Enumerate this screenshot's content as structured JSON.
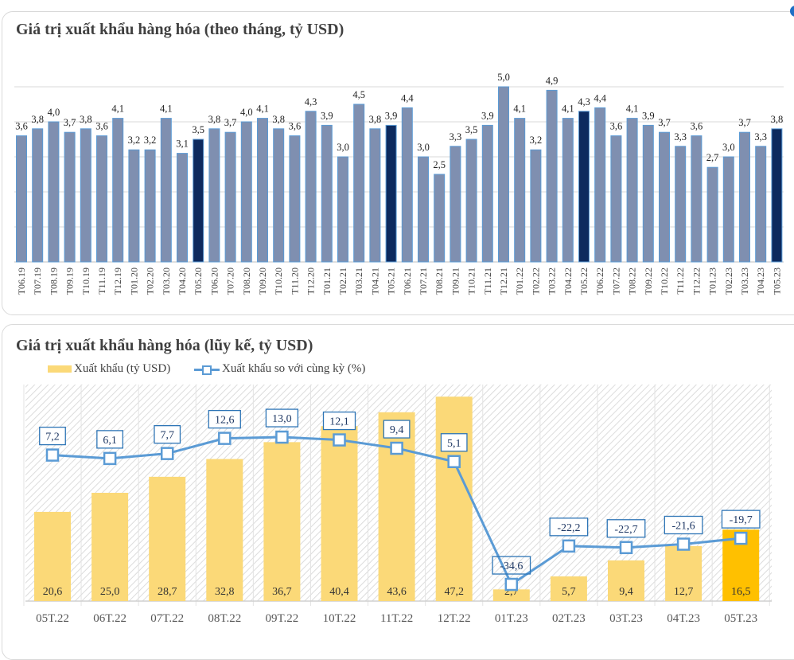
{
  "chart_data": [
    {
      "type": "bar",
      "title": "Giá trị xuất khẩu hàng hóa (theo tháng, tỷ USD)",
      "xlabel": "",
      "ylabel": "",
      "ylim": [
        0,
        5
      ],
      "grid": true,
      "categories": [
        "T06.19",
        "T07.19",
        "T08.19",
        "T09.19",
        "T10.19",
        "T11.19",
        "T12.19",
        "T01.20",
        "T02.20",
        "T03.20",
        "T04.20",
        "T05.20",
        "T06.20",
        "T07.20",
        "T08.20",
        "T09.20",
        "T10.20",
        "T11.20",
        "T12.20",
        "T01.21",
        "T02.21",
        "T03.21",
        "T04.21",
        "T05.21",
        "T06.21",
        "T07.21",
        "T08.21",
        "T09.21",
        "T10.21",
        "T11.21",
        "T12.21",
        "T01.22",
        "T02.22",
        "T03.22",
        "T04.22",
        "T05.22",
        "T06.22",
        "T07.22",
        "T08.22",
        "T09.22",
        "T10.22",
        "T11.22",
        "T12.22",
        "T01.23",
        "T02.23",
        "T03.23",
        "T04.23",
        "T05.23"
      ],
      "values": [
        3.6,
        3.8,
        4.0,
        3.7,
        3.8,
        3.6,
        4.1,
        3.2,
        3.2,
        4.1,
        3.1,
        3.5,
        3.8,
        3.7,
        4.0,
        4.1,
        3.8,
        3.6,
        4.3,
        3.9,
        3.0,
        4.5,
        3.8,
        3.9,
        4.4,
        3.0,
        2.5,
        3.3,
        3.5,
        3.9,
        5.0,
        4.1,
        3.2,
        4.9,
        4.1,
        4.3,
        4.4,
        3.6,
        4.1,
        3.9,
        3.7,
        3.3,
        3.6,
        2.7,
        3.0,
        3.7,
        3.3,
        3.8
      ],
      "highlight_categories": [
        "T05.20",
        "T05.21",
        "T05.22",
        "T05.23"
      ],
      "colors": {
        "bar": "#7f8fb0",
        "highlight": "#0d2a5e",
        "outline": "#5b9bd5"
      }
    },
    {
      "type": "bar+line",
      "title": "Giá trị xuất khẩu hàng hóa (lũy kế, tỷ USD)",
      "legend_placement": "top-left",
      "grid": true,
      "categories": [
        "05T.22",
        "06T.22",
        "07T.22",
        "08T.22",
        "09T.22",
        "10T.22",
        "11T.22",
        "12T.22",
        "01T.23",
        "02T.23",
        "03T.23",
        "04T.23",
        "05T.23"
      ],
      "series": [
        {
          "name": "Xuất khẩu (tỷ USD)",
          "type": "bar",
          "axis": "left",
          "ylim": [
            0,
            50
          ],
          "values": [
            20.6,
            25.0,
            28.7,
            32.8,
            36.7,
            40.4,
            43.6,
            47.2,
            2.7,
            5.7,
            9.4,
            12.7,
            16.5
          ],
          "labels": [
            "20,6",
            "25,0",
            "28,7",
            "32,8",
            "36,7",
            "40,4",
            "43,6",
            "47,2",
            "2,7",
            "5,7",
            "9,4",
            "12,7",
            "16,5"
          ],
          "color": "#fbd978",
          "highlight_color": "#ffc000",
          "highlight_category": "05T.23"
        },
        {
          "name": "Xuất khẩu so với cùng kỳ (%)",
          "type": "line",
          "axis": "right",
          "ylim": [
            -40,
            30
          ],
          "values": [
            7.2,
            6.1,
            7.7,
            12.6,
            13.0,
            12.1,
            9.4,
            5.1,
            -34.6,
            -22.2,
            -22.7,
            -21.6,
            -19.7
          ],
          "labels": [
            "7,2",
            "6,1",
            "7,7",
            "12,6",
            "13,0",
            "12,1",
            "9,4",
            "5,1",
            "-34,6",
            "-22,2",
            "-22,7",
            "-21,6",
            "-19,7"
          ],
          "color": "#5b9bd5"
        }
      ]
    }
  ]
}
